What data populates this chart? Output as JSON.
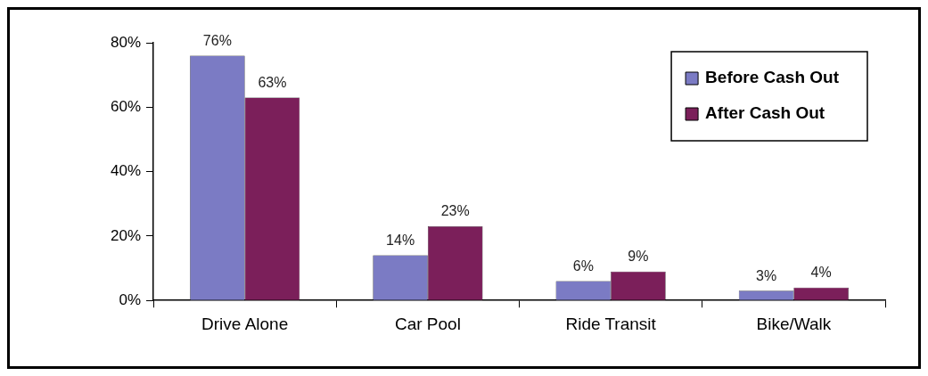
{
  "chart_data": {
    "type": "bar",
    "categories": [
      "Drive Alone",
      "Car Pool",
      "Ride Transit",
      "Bike/Walk"
    ],
    "series": [
      {
        "name": "Before Cash Out",
        "color": "#7b7bc4",
        "values": [
          76,
          14,
          6,
          3
        ],
        "value_labels": [
          "76%",
          "14%",
          "6%",
          "3%"
        ]
      },
      {
        "name": "After Cash Out",
        "color": "#7b1f5a",
        "values": [
          63,
          23,
          9,
          4
        ],
        "value_labels": [
          "63%",
          "23%",
          "9%",
          "4%"
        ]
      }
    ],
    "ylim": [
      0,
      80
    ],
    "yticks": [
      {
        "value": 0,
        "label": "0%"
      },
      {
        "value": 20,
        "label": "20%"
      },
      {
        "value": 40,
        "label": "40%"
      },
      {
        "value": 60,
        "label": "60%"
      },
      {
        "value": 80,
        "label": "80%"
      }
    ],
    "grid": false,
    "legend": "top right"
  }
}
